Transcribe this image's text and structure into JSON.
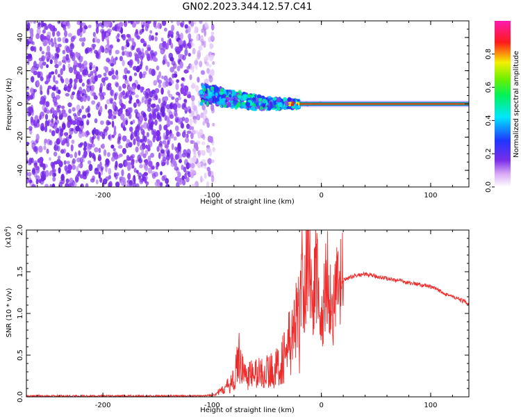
{
  "title": "GN02.2023.344.12.57.C41",
  "chart_data": [
    {
      "type": "heatmap",
      "xlabel": "Height of straight line (km)",
      "ylabel": "Frequency (Hz)",
      "xlim": [
        -270,
        135
      ],
      "ylim": [
        -50,
        50
      ],
      "x_ticks": [
        -200,
        -100,
        0,
        100
      ],
      "x_tick_labels": [
        "-200",
        "-100",
        "0",
        "100"
      ],
      "y_ticks": [
        -40,
        -20,
        0,
        20,
        40
      ],
      "y_tick_labels": [
        "-40",
        "-20",
        "0",
        "20",
        "40"
      ],
      "colorbar": {
        "label": "Normalized spectral amplitude",
        "range": [
          0.0,
          1.0
        ],
        "ticks": [
          0.0,
          0.2,
          0.4,
          0.6,
          0.8
        ],
        "tick_labels": [
          "0.0",
          "0.2",
          "0.4",
          "0.6",
          "0.8"
        ],
        "colormap": "rainbow (white-violet-blue-cyan-green-yellow-red-magenta)"
      },
      "regions": [
        {
          "x_range": [
            -270,
            -110
          ],
          "y_range": [
            -50,
            50
          ],
          "amplitude": 0.1
        },
        {
          "x_range": [
            -110,
            -20
          ],
          "y_center_at_x": [
            [
              -110,
              6
            ],
            [
              -80,
              3
            ],
            [
              -50,
              0
            ],
            [
              -20,
              0
            ]
          ],
          "amplitude": 0.3
        },
        {
          "x_range": [
            -20,
            135
          ],
          "y_center": 0,
          "amplitude": 0.9
        }
      ]
    },
    {
      "type": "line",
      "xlabel": "Height of straight line (km)",
      "ylabel": "SNR (10 * v/v)",
      "y_multiplier": "(x10",
      "y_multiplier_exp": "4",
      "y_multiplier_close": ")",
      "xlim": [
        -270,
        135
      ],
      "ylim": [
        0,
        2.0
      ],
      "x_ticks": [
        -200,
        -100,
        0,
        100
      ],
      "x_tick_labels": [
        "-200",
        "-100",
        "0",
        "100"
      ],
      "y_ticks": [
        0,
        0.5,
        1.0,
        1.5,
        2.0
      ],
      "y_tick_labels": [
        "0.0",
        "0.5",
        "1.0",
        "1.5",
        "2.0"
      ],
      "series": [
        {
          "color": "#ee2a2a",
          "x": [
            -270,
            -200,
            -110,
            -100,
            -90,
            -80,
            -75,
            -70,
            -60,
            -50,
            -40,
            -30,
            -25,
            -20,
            -18,
            -15,
            -12,
            -10,
            -8,
            -5,
            0,
            5,
            10,
            15,
            20,
            30,
            40,
            60,
            80,
            100,
            120,
            135
          ],
          "y": [
            0.01,
            0.01,
            0.01,
            0.02,
            0.08,
            0.2,
            0.5,
            0.25,
            0.28,
            0.3,
            0.35,
            0.6,
            0.8,
            0.9,
            1.5,
            1.2,
            2.0,
            1.4,
            1.0,
            1.6,
            0.8,
            1.5,
            1.0,
            1.3,
            1.4,
            1.45,
            1.47,
            1.42,
            1.37,
            1.32,
            1.2,
            1.12
          ]
        }
      ]
    }
  ]
}
